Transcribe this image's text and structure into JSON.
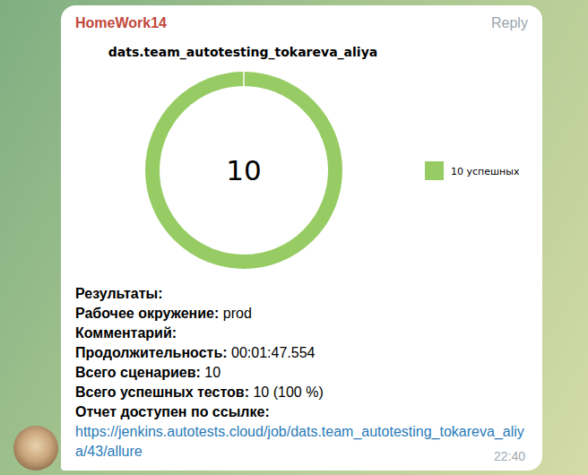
{
  "header": {
    "sender": "HomeWork14",
    "reply": "Reply"
  },
  "chart_data": {
    "type": "donut",
    "title": "dats.team_autotesting_tokareva_aliya",
    "categories": [
      "10 успешных"
    ],
    "values": [
      10
    ],
    "colors": [
      "#97cc64"
    ],
    "total": 10,
    "legend": "right"
  },
  "report": {
    "heading": "Результаты:",
    "fields": [
      {
        "label": "Рабочее окружение:",
        "value": "prod"
      },
      {
        "label": "Комментарий:"
      },
      {
        "label": "Продолжительность:",
        "value": "00:01:47.554"
      },
      {
        "label": "Всего сценариев:",
        "value": 10
      },
      {
        "label": "Всего успешных тестов:",
        "value": "10 (100 %)"
      }
    ],
    "link_label": "Отчет доступен по ссылке:",
    "link": "https://jenkins.autotests.cloud/job/dats.team_autotesting_tokareva_aliya/43/allure"
  },
  "time": "22:40"
}
